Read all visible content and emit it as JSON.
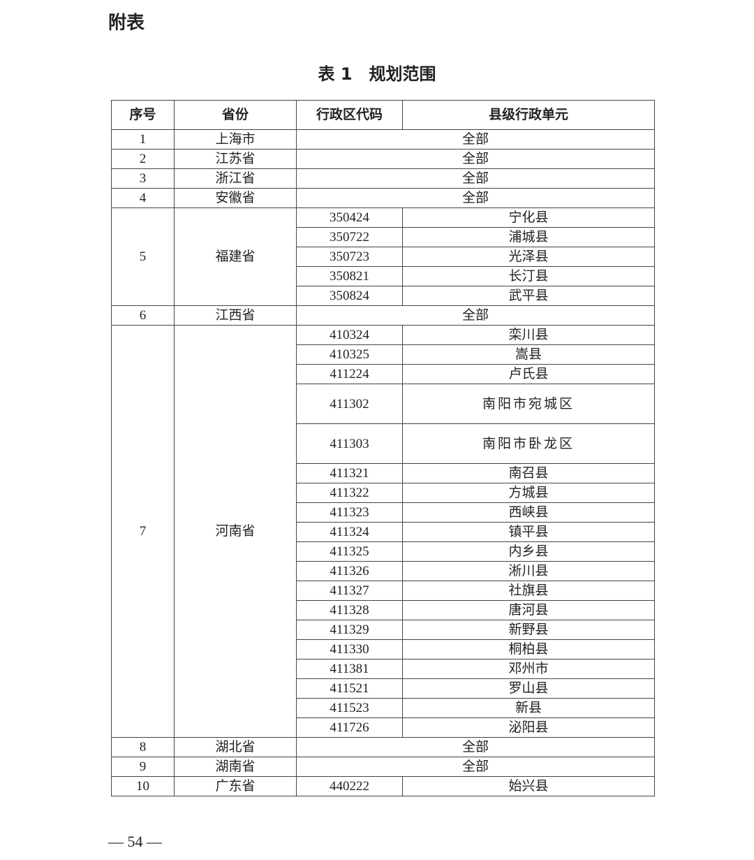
{
  "appendix_heading": "附表",
  "table_title": "表 1　规划范围",
  "headers": [
    "序号",
    "省份",
    "行政区代码",
    "县级行政单元"
  ],
  "rows": [
    {
      "no": "1",
      "province": "上海市",
      "all": "全部"
    },
    {
      "no": "2",
      "province": "江苏省",
      "all": "全部"
    },
    {
      "no": "3",
      "province": "浙江省",
      "all": "全部"
    },
    {
      "no": "4",
      "province": "安徽省",
      "all": "全部"
    },
    {
      "no": "5",
      "province": "福建省",
      "entries": [
        {
          "code": "350424",
          "county": "宁化县"
        },
        {
          "code": "350722",
          "county": "浦城县"
        },
        {
          "code": "350723",
          "county": "光泽县"
        },
        {
          "code": "350821",
          "county": "长汀县"
        },
        {
          "code": "350824",
          "county": "武平县"
        }
      ]
    },
    {
      "no": "6",
      "province": "江西省",
      "all": "全部"
    },
    {
      "no": "7",
      "province": "河南省",
      "entries": [
        {
          "code": "410324",
          "county": "栾川县"
        },
        {
          "code": "410325",
          "county": "嵩县"
        },
        {
          "code": "411224",
          "county": "卢氏县"
        },
        {
          "code": "411302",
          "county": "南阳市宛城区"
        },
        {
          "code": "411303",
          "county": "南阳市卧龙区"
        },
        {
          "code": "411321",
          "county": "南召县"
        },
        {
          "code": "411322",
          "county": "方城县"
        },
        {
          "code": "411323",
          "county": "西峡县"
        },
        {
          "code": "411324",
          "county": "镇平县"
        },
        {
          "code": "411325",
          "county": "内乡县"
        },
        {
          "code": "411326",
          "county": "淅川县"
        },
        {
          "code": "411327",
          "county": "社旗县"
        },
        {
          "code": "411328",
          "county": "唐河县"
        },
        {
          "code": "411329",
          "county": "新野县"
        },
        {
          "code": "411330",
          "county": "桐柏县"
        },
        {
          "code": "411381",
          "county": "邓州市"
        },
        {
          "code": "411521",
          "county": "罗山县"
        },
        {
          "code": "411523",
          "county": "新县"
        },
        {
          "code": "411726",
          "county": "泌阳县"
        }
      ]
    },
    {
      "no": "8",
      "province": "湖北省",
      "all": "全部"
    },
    {
      "no": "9",
      "province": "湖南省",
      "all": "全部"
    },
    {
      "no": "10",
      "province": "广东省",
      "entries": [
        {
          "code": "440222",
          "county": "始兴县"
        }
      ]
    }
  ],
  "page_number": "— 54 —"
}
